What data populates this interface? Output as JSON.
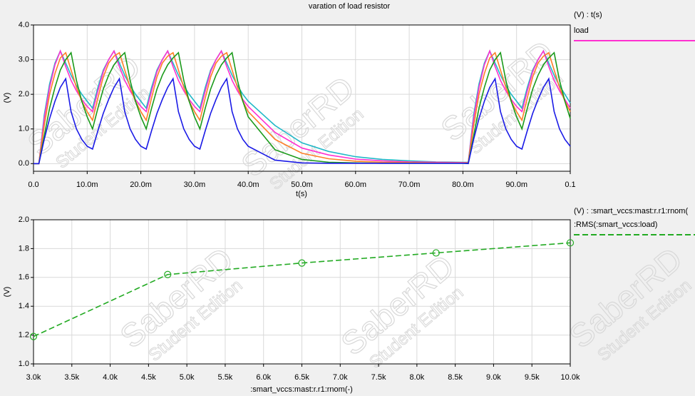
{
  "watermark": {
    "brand": "SaberRD",
    "edition": "Student Edition"
  },
  "chart_data": [
    {
      "type": "line",
      "title": "varation of load resistor",
      "x_label": "t(s)",
      "y_label": "(V)",
      "legend_title": "(V) : t(s)",
      "grid": true,
      "x": [
        0,
        0.001,
        0.002,
        0.003,
        0.004,
        0.005,
        0.006,
        0.007,
        0.008,
        0.009,
        0.01,
        0.011,
        0.012,
        0.013,
        0.014,
        0.015,
        0.016,
        0.017,
        0.018,
        0.019,
        0.02,
        0.021,
        0.022,
        0.023,
        0.024,
        0.025,
        0.026,
        0.027,
        0.028,
        0.029,
        0.03,
        0.031,
        0.032,
        0.033,
        0.034,
        0.035,
        0.036,
        0.037,
        0.038,
        0.039,
        0.04,
        0.045,
        0.05,
        0.055,
        0.06,
        0.065,
        0.07,
        0.075,
        0.08,
        0.081,
        0.082,
        0.083,
        0.084,
        0.085,
        0.086,
        0.087,
        0.088,
        0.089,
        0.09,
        0.091,
        0.092,
        0.093,
        0.094,
        0.095,
        0.096,
        0.097,
        0.098,
        0.099,
        0.1
      ],
      "xlim": [
        0,
        0.1
      ],
      "xticks": [
        {
          "value": 0,
          "label": "0.0"
        },
        {
          "value": 0.01,
          "label": "10.0m"
        },
        {
          "value": 0.02,
          "label": "20.0m"
        },
        {
          "value": 0.03,
          "label": "30.0m"
        },
        {
          "value": 0.04,
          "label": "40.0m"
        },
        {
          "value": 0.05,
          "label": "50.0m"
        },
        {
          "value": 0.06,
          "label": "60.0m"
        },
        {
          "value": 0.07,
          "label": "70.0m"
        },
        {
          "value": 0.08,
          "label": "80.0m"
        },
        {
          "value": 0.09,
          "label": "90.0m"
        },
        0.1
      ],
      "ylim": [
        -0.22,
        4.0
      ],
      "yticks": [
        {
          "value": 0,
          "label": "0.0"
        },
        {
          "value": 1,
          "label": "1.0"
        },
        {
          "value": 2,
          "label": "2.0"
        },
        {
          "value": 3,
          "label": "3.0"
        },
        {
          "value": 4,
          "label": "4.0"
        }
      ],
      "series": [
        {
          "color": "#20b8c8",
          "values": [
            0,
            0,
            1.4,
            2.3,
            2.9,
            3.25,
            2.9,
            2.55,
            2.25,
            2.0,
            1.8,
            1.6,
            2.2,
            2.7,
            3.0,
            3.25,
            2.9,
            2.55,
            2.25,
            2.0,
            1.8,
            1.6,
            2.2,
            2.7,
            3.0,
            3.25,
            2.9,
            2.55,
            2.25,
            2.0,
            1.8,
            1.6,
            2.2,
            2.7,
            3.0,
            3.25,
            2.9,
            2.55,
            2.25,
            2.0,
            1.8,
            1.1,
            0.6,
            0.35,
            0.2,
            0.12,
            0.08,
            0.05,
            0.04,
            0.04,
            1.4,
            2.3,
            2.9,
            3.25,
            2.9,
            2.55,
            2.25,
            2.0,
            1.8,
            1.6,
            2.2,
            2.7,
            3.0,
            3.25,
            2.9,
            2.55,
            2.25,
            2.0,
            1.75
          ]
        },
        {
          "name": "load",
          "color": "#ff30d0",
          "values": [
            0,
            0,
            1.3,
            2.2,
            2.85,
            3.25,
            2.8,
            2.4,
            2.1,
            1.85,
            1.65,
            1.5,
            2.1,
            2.65,
            3.0,
            3.25,
            2.8,
            2.4,
            2.1,
            1.85,
            1.65,
            1.5,
            2.1,
            2.65,
            3.0,
            3.25,
            2.8,
            2.4,
            2.1,
            1.85,
            1.65,
            1.5,
            2.1,
            2.65,
            3.0,
            3.25,
            2.8,
            2.4,
            2.1,
            1.85,
            1.65,
            0.9,
            0.45,
            0.25,
            0.13,
            0.08,
            0.05,
            0.04,
            0.03,
            0.03,
            1.3,
            2.2,
            2.85,
            3.25,
            2.8,
            2.4,
            2.1,
            1.85,
            1.65,
            1.5,
            2.1,
            2.65,
            3.0,
            3.25,
            2.8,
            2.4,
            2.1,
            1.85,
            1.6
          ]
        },
        {
          "color": "#ff7f27",
          "values": [
            0,
            0,
            1.1,
            2.0,
            2.6,
            3.05,
            3.2,
            2.7,
            2.2,
            1.8,
            1.5,
            1.25,
            1.9,
            2.5,
            2.9,
            3.1,
            3.2,
            2.7,
            2.2,
            1.8,
            1.5,
            1.25,
            1.9,
            2.5,
            2.9,
            3.1,
            3.2,
            2.7,
            2.2,
            1.8,
            1.5,
            1.25,
            1.9,
            2.5,
            2.9,
            3.1,
            3.2,
            2.7,
            2.2,
            1.8,
            1.5,
            0.7,
            0.3,
            0.14,
            0.07,
            0.04,
            0.03,
            0.02,
            0.02,
            0.02,
            1.1,
            2.0,
            2.6,
            3.05,
            3.2,
            2.7,
            2.2,
            1.8,
            1.5,
            1.25,
            1.9,
            2.5,
            2.9,
            3.1,
            3.2,
            2.7,
            2.2,
            1.8,
            1.5
          ]
        },
        {
          "color": "#1a9a1a",
          "values": [
            0,
            0,
            0.8,
            1.6,
            2.2,
            2.7,
            3.0,
            3.2,
            2.4,
            1.8,
            1.35,
            1.0,
            1.6,
            2.15,
            2.55,
            2.85,
            3.05,
            3.2,
            2.4,
            1.8,
            1.35,
            1.0,
            1.6,
            2.15,
            2.55,
            2.85,
            3.05,
            3.2,
            2.4,
            1.8,
            1.35,
            1.0,
            1.6,
            2.15,
            2.55,
            2.85,
            3.05,
            3.2,
            2.4,
            1.8,
            1.35,
            0.4,
            0.12,
            0.04,
            0.02,
            0.01,
            0.01,
            0.01,
            0.01,
            0.01,
            0.8,
            1.6,
            2.2,
            2.7,
            3.0,
            3.2,
            2.4,
            1.8,
            1.35,
            1.0,
            1.6,
            2.15,
            2.55,
            2.85,
            3.05,
            3.2,
            2.4,
            1.8,
            1.3
          ]
        },
        {
          "color": "#1a1ae6",
          "values": [
            0,
            0,
            0.7,
            1.3,
            1.8,
            2.2,
            2.45,
            1.5,
            1.0,
            0.7,
            0.5,
            0.42,
            0.95,
            1.45,
            1.85,
            2.2,
            2.45,
            1.5,
            1.0,
            0.7,
            0.5,
            0.42,
            0.95,
            1.45,
            1.85,
            2.2,
            2.45,
            1.5,
            1.0,
            0.7,
            0.5,
            0.42,
            0.95,
            1.45,
            1.85,
            2.2,
            2.45,
            1.5,
            1.0,
            0.7,
            0.5,
            0.1,
            0.02,
            0.01,
            0.01,
            0.01,
            0.01,
            0.01,
            0.01,
            0,
            0.7,
            1.3,
            1.8,
            2.2,
            2.45,
            1.5,
            1.0,
            0.7,
            0.5,
            0.42,
            0.95,
            1.45,
            1.85,
            2.2,
            2.45,
            1.5,
            1.0,
            0.7,
            0.5
          ]
        }
      ]
    },
    {
      "type": "line",
      "x_label": ":smart_vccs:mast:r.r1:rnom(-)",
      "y_label": "(V)",
      "legend_title": "(V) : :smart_vccs:mast:r.r1:rnom(",
      "grid": true,
      "markers": true,
      "dashed": true,
      "x": [
        3000,
        4750,
        6500,
        8250,
        10000
      ],
      "xlim": [
        3000,
        10000
      ],
      "xticks": [
        {
          "value": 3000,
          "label": "3.0k"
        },
        {
          "value": 3500,
          "label": "3.5k"
        },
        {
          "value": 4000,
          "label": "4.0k"
        },
        {
          "value": 4500,
          "label": "4.5k"
        },
        {
          "value": 5000,
          "label": "5.0k"
        },
        {
          "value": 5500,
          "label": "5.5k"
        },
        {
          "value": 6000,
          "label": "6.0k"
        },
        {
          "value": 6500,
          "label": "6.5k"
        },
        {
          "value": 7000,
          "label": "7.0k"
        },
        {
          "value": 7500,
          "label": "7.5k"
        },
        {
          "value": 8000,
          "label": "8.0k"
        },
        {
          "value": 8500,
          "label": "8.5k"
        },
        {
          "value": 9000,
          "label": "9.0k"
        },
        {
          "value": 9500,
          "label": "9.5k"
        },
        {
          "value": 10000,
          "label": "10.0k"
        }
      ],
      "ylim": [
        1.0,
        2.0
      ],
      "yticks": [
        {
          "value": 1,
          "label": "1.0"
        },
        1.2,
        1.4,
        1.6,
        1.8,
        {
          "value": 2,
          "label": "2.0"
        }
      ],
      "series": [
        {
          "name": ":RMS(:smart_vccs:load)",
          "color": "#22aa22",
          "values": [
            1.19,
            1.62,
            1.7,
            1.77,
            1.84
          ]
        }
      ]
    }
  ]
}
